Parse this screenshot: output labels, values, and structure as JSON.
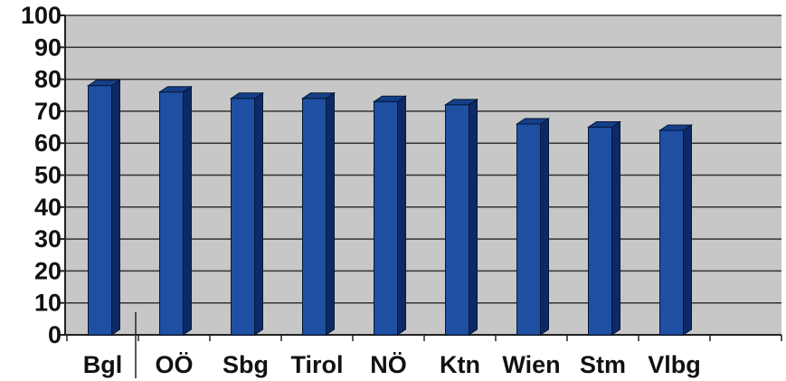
{
  "chart_data": {
    "type": "bar",
    "title": "",
    "xlabel": "",
    "ylabel": "",
    "categories": [
      "Bgl",
      "OÖ",
      "Sbg",
      "Tirol",
      "NÖ",
      "Ktn",
      "Wien",
      "Stm",
      "Vlbg"
    ],
    "values": [
      78,
      76,
      74,
      74,
      73,
      72,
      66,
      65,
      64
    ],
    "ylim": [
      0,
      100
    ],
    "yticks": [
      "0",
      "10",
      "20",
      "30",
      "40",
      "50",
      "60",
      "70",
      "80",
      "90",
      "100"
    ],
    "grid": true,
    "style": "3d-columns",
    "colors": {
      "bar_front": "#1f4fa3",
      "bar_side": "#0d2a66",
      "bar_top": "#163f8a",
      "plot_bg": "#c7c7c7",
      "gridline": "#333333"
    }
  }
}
